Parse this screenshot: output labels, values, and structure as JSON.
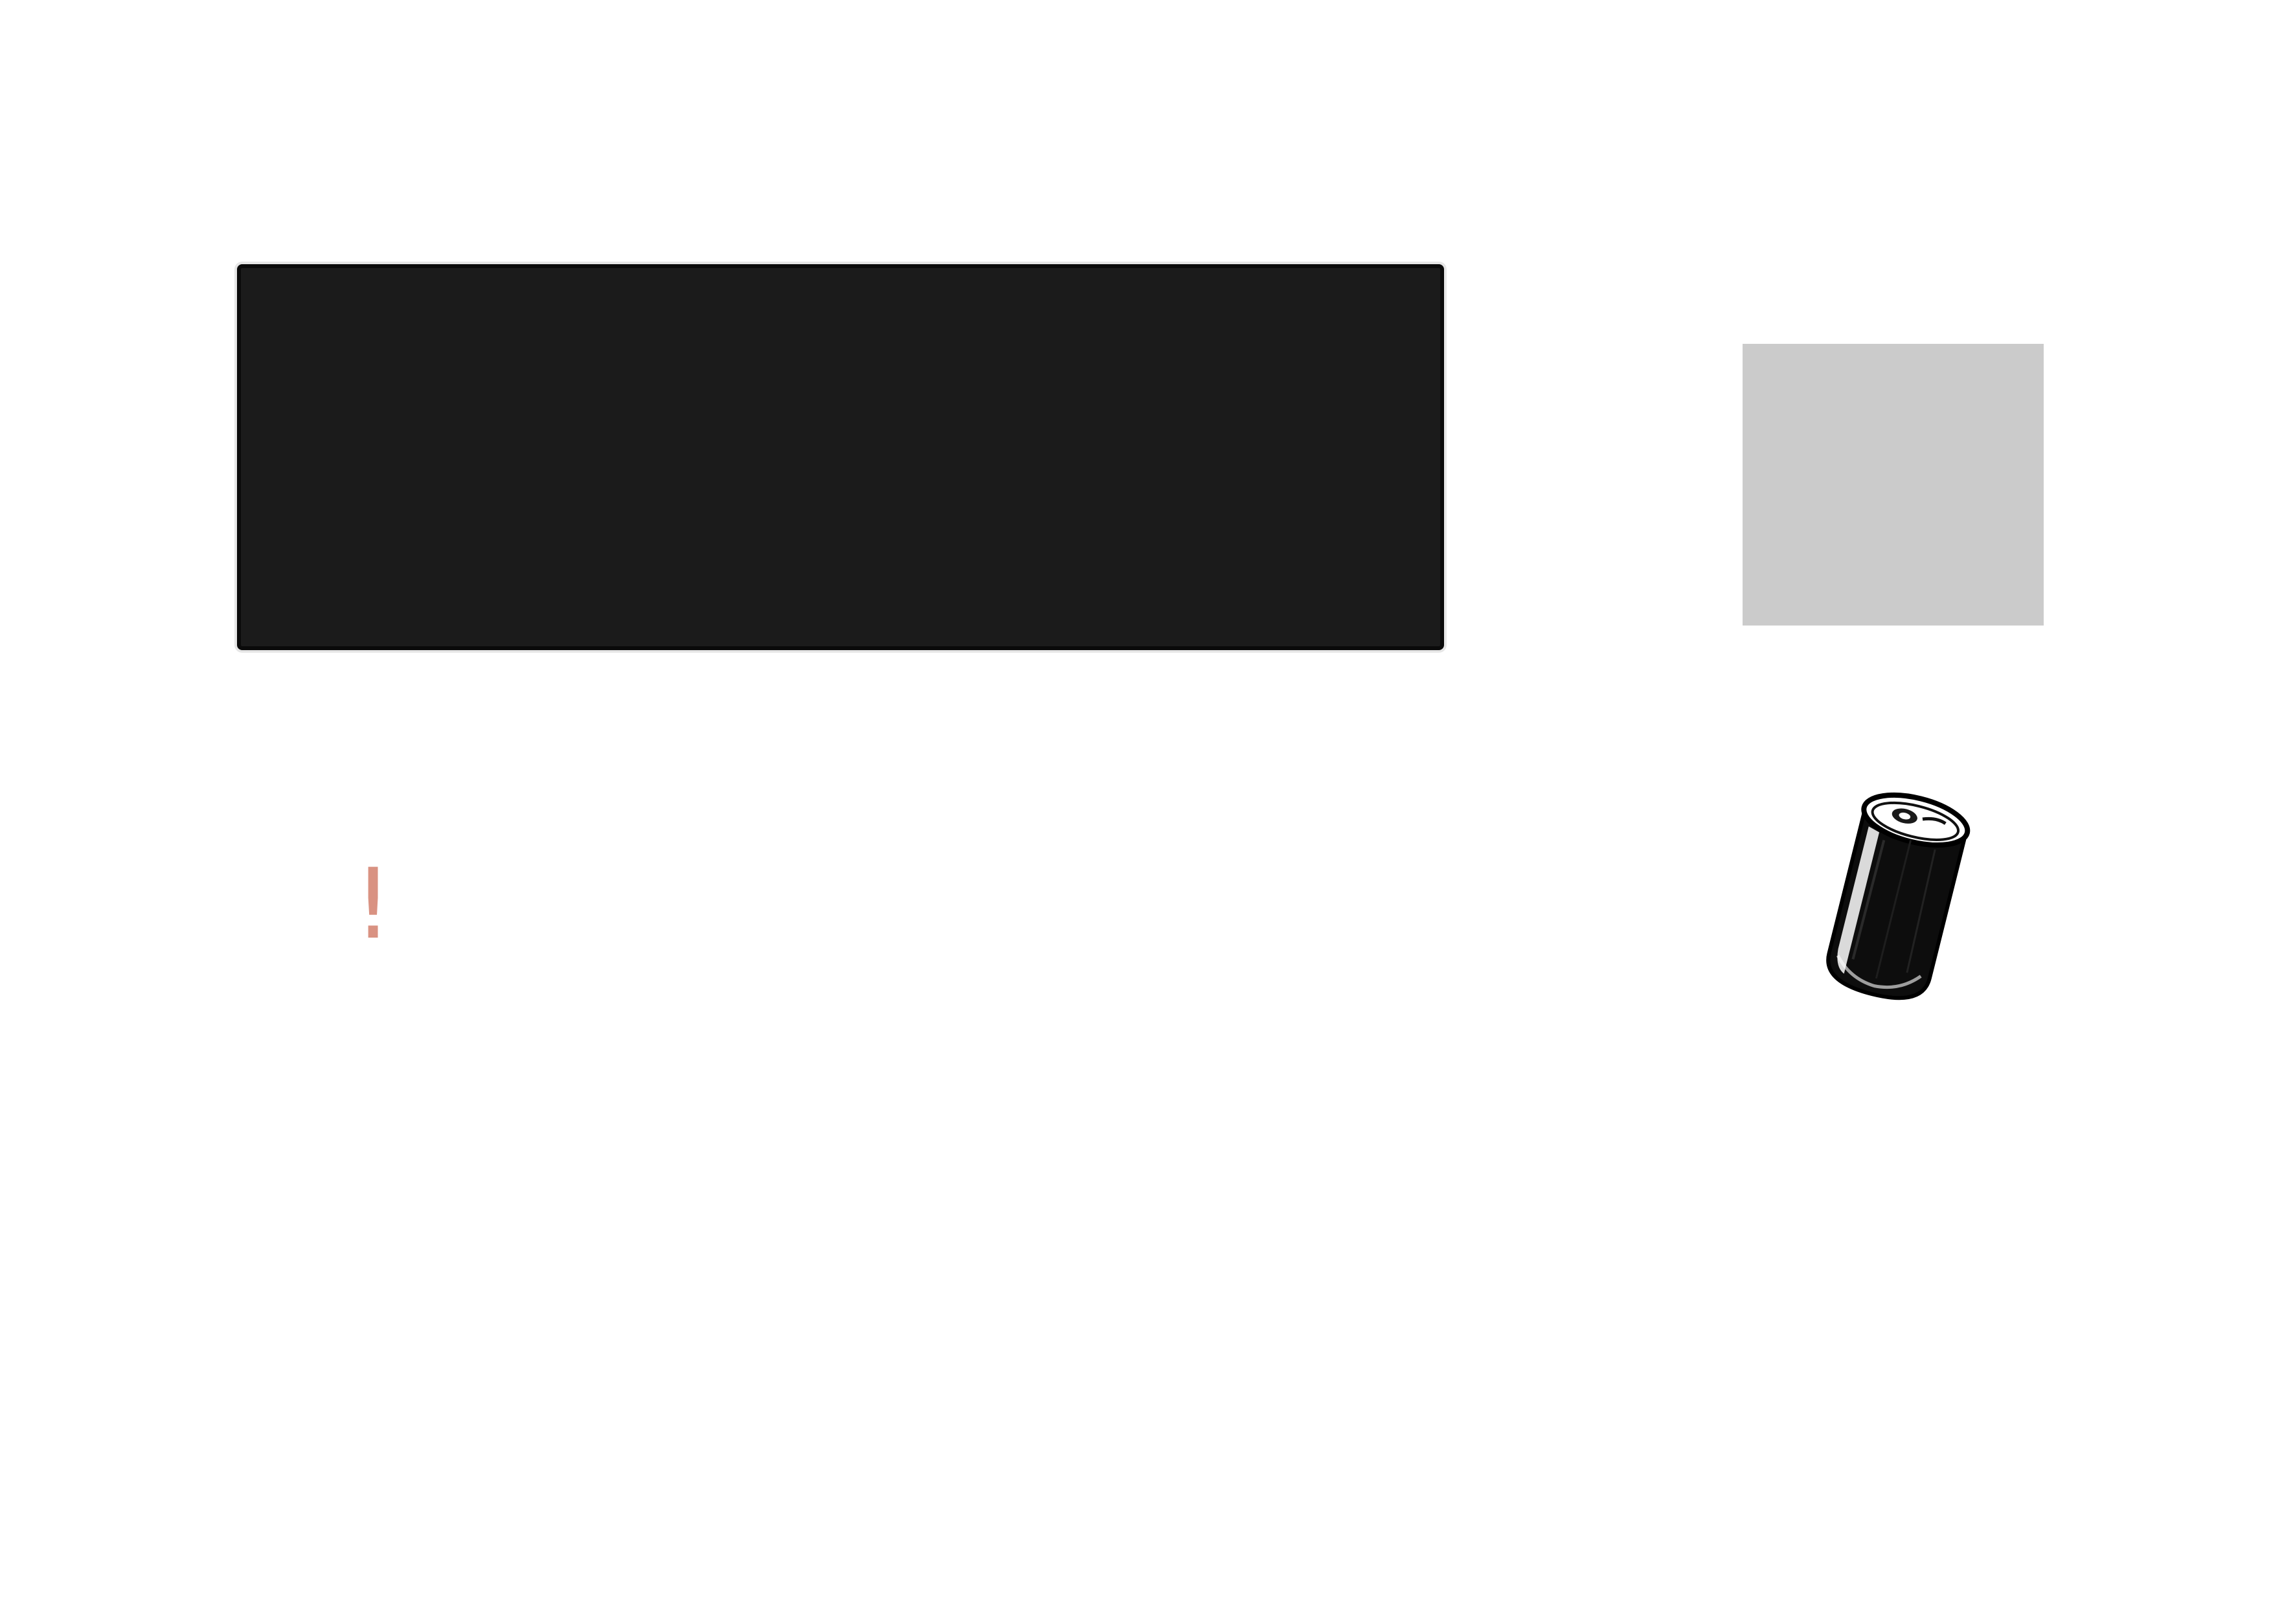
{
  "canvas": {
    "background": "#ffffff"
  },
  "panel": {
    "fill": "#1b1b1b",
    "border": "#0a0a0a"
  },
  "placeholder": {
    "fill": "#cbcbcb"
  },
  "alert": {
    "glyph": "!",
    "color": "#d99282"
  },
  "illustration": {
    "icon": "drink-can-icon",
    "ink": "#0d0d0d"
  }
}
